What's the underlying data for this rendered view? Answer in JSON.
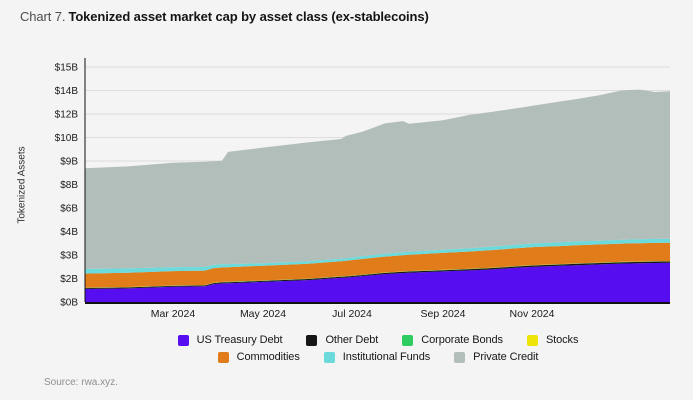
{
  "header": {
    "prefix": "Chart 7.",
    "title": "Tokenized asset market cap by asset class (ex-stablecoins)"
  },
  "footer": {
    "source": "Source: rwa.xyz."
  },
  "axis": {
    "ylabel": "Tokenized Assets"
  },
  "colors": {
    "background": "#f4f4f4",
    "gridline": "#dddddd",
    "axis_line": "#111111",
    "tick_text": "#1a1a1a"
  },
  "chart_data": {
    "type": "area",
    "title": "Tokenized asset market cap by asset class (ex-stablecoins)",
    "xlabel": "",
    "ylabel": "Tokenized Assets",
    "ylim": [
      0,
      15
    ],
    "unit": "$B",
    "grid": "horizontal",
    "legend_position": "bottom",
    "x_ticks": [
      {
        "label": "Mar 2024",
        "t": 0.1504
      },
      {
        "label": "May 2024",
        "t": 0.3043
      },
      {
        "label": "Jul 2024",
        "t": 0.4564
      },
      {
        "label": "Sep 2024",
        "t": 0.612
      },
      {
        "label": "Nov 2024",
        "t": 0.7641
      }
    ],
    "y_ticks": [
      {
        "label": "$0B",
        "value": 0
      },
      {
        "label": "$2B",
        "value": 1.5
      },
      {
        "label": "$3B",
        "value": 3
      },
      {
        "label": "$4B",
        "value": 4.5
      },
      {
        "label": "$6B",
        "value": 6
      },
      {
        "label": "$8B",
        "value": 7.5
      },
      {
        "label": "$9B",
        "value": 9
      },
      {
        "label": "$10B",
        "value": 10.5
      },
      {
        "label": "$12B",
        "value": 12
      },
      {
        "label": "$14B",
        "value": 13.5
      },
      {
        "label": "$15B",
        "value": 15
      }
    ],
    "x": [
      0,
      0.0735,
      0.1504,
      0.2051,
      0.2188,
      0.2342,
      0.2444,
      0.3043,
      0.3812,
      0.4376,
      0.4462,
      0.4735,
      0.5128,
      0.5436,
      0.5538,
      0.612,
      0.6581,
      0.6889,
      0.7436,
      0.7692,
      0.812,
      0.841,
      0.8803,
      0.9179,
      0.9487,
      0.9744,
      1.0
    ],
    "series": [
      {
        "name": "US Treasury Debt",
        "color": "#560df0",
        "values": [
          0.83,
          0.87,
          0.97,
          1.0,
          1.13,
          1.19,
          1.2,
          1.28,
          1.4,
          1.54,
          1.56,
          1.65,
          1.78,
          1.85,
          1.87,
          1.95,
          2.02,
          2.07,
          2.2,
          2.25,
          2.31,
          2.35,
          2.4,
          2.45,
          2.47,
          2.49,
          2.5
        ]
      },
      {
        "name": "Other Debt",
        "color": "#161616",
        "values": [
          0.06,
          0.06,
          0.06,
          0.06,
          0.065,
          0.065,
          0.065,
          0.07,
          0.07,
          0.07,
          0.07,
          0.07,
          0.075,
          0.075,
          0.075,
          0.08,
          0.08,
          0.08,
          0.08,
          0.085,
          0.085,
          0.09,
          0.09,
          0.09,
          0.09,
          0.09,
          0.09
        ]
      },
      {
        "name": "Corporate Bonds",
        "color": "#2fcc62",
        "values": [
          0.015,
          0.015,
          0.015,
          0.015,
          0.015,
          0.015,
          0.015,
          0.015,
          0.015,
          0.015,
          0.015,
          0.015,
          0.015,
          0.015,
          0.015,
          0.015,
          0.015,
          0.015,
          0.015,
          0.015,
          0.015,
          0.015,
          0.015,
          0.015,
          0.015,
          0.015,
          0.015
        ]
      },
      {
        "name": "Stocks",
        "color": "#ede409",
        "values": [
          0.01,
          0.01,
          0.01,
          0.01,
          0.01,
          0.01,
          0.01,
          0.01,
          0.01,
          0.01,
          0.01,
          0.01,
          0.01,
          0.01,
          0.01,
          0.01,
          0.01,
          0.01,
          0.01,
          0.01,
          0.01,
          0.01,
          0.01,
          0.01,
          0.01,
          0.01,
          0.01
        ]
      },
      {
        "name": "Commodities",
        "color": "#e07c1a",
        "values": [
          0.9,
          0.91,
          0.92,
          0.92,
          0.93,
          0.93,
          0.93,
          0.94,
          0.95,
          0.97,
          0.98,
          1.0,
          1.02,
          1.04,
          1.04,
          1.08,
          1.1,
          1.12,
          1.14,
          1.15,
          1.15,
          1.16,
          1.16,
          1.16,
          1.17,
          1.17,
          1.17
        ]
      },
      {
        "name": "Institutional Funds",
        "color": "#6cd9db",
        "values": [
          0.3,
          0.28,
          0.25,
          0.23,
          0.22,
          0.21,
          0.2,
          0.16,
          0.15,
          0.16,
          0.16,
          0.17,
          0.18,
          0.19,
          0.19,
          0.2,
          0.21,
          0.22,
          0.23,
          0.23,
          0.24,
          0.24,
          0.24,
          0.25,
          0.25,
          0.25,
          0.25
        ]
      },
      {
        "name": "Private Credit",
        "color": "#b2beba",
        "values": [
          6.42,
          6.51,
          6.66,
          6.72,
          6.61,
          6.6,
          7.16,
          7.38,
          7.59,
          7.64,
          7.81,
          7.94,
          8.32,
          8.37,
          8.18,
          8.27,
          8.52,
          8.59,
          8.73,
          8.81,
          8.99,
          9.09,
          9.29,
          9.53,
          9.55,
          9.38,
          9.42
        ]
      }
    ],
    "totals_estimate": [
      8.53,
      8.65,
      8.88,
      8.95,
      8.98,
      9.02,
      9.58,
      9.85,
      10.18,
      10.4,
      10.6,
      10.85,
      11.4,
      11.55,
      11.38,
      11.6,
      11.95,
      12.1,
      12.4,
      12.55,
      12.8,
      12.95,
      13.2,
      13.5,
      13.55,
      13.4,
      13.45
    ],
    "legend_rows": [
      [
        "US Treasury Debt",
        "Other Debt",
        "Corporate Bonds",
        "Stocks"
      ],
      [
        "Commodities",
        "Institutional Funds",
        "Private Credit"
      ]
    ]
  }
}
